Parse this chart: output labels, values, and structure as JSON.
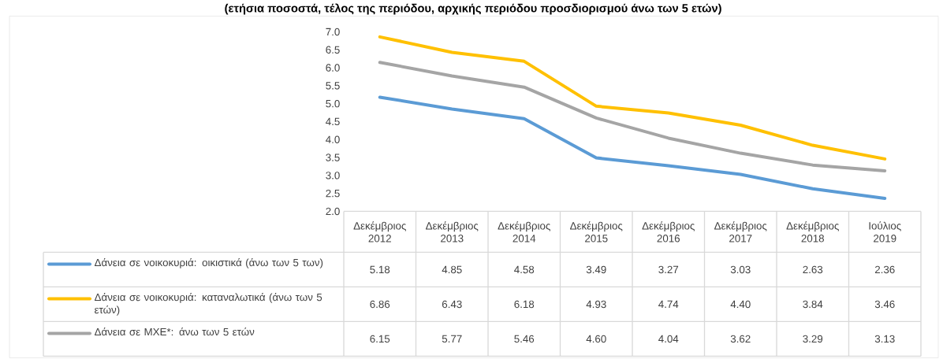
{
  "chart_data": {
    "type": "line",
    "title": "(ετήσια ποσοστά, τέλος της περιόδου, αρχικής περιόδου προσδιορισμού άνω των 5 ετών)",
    "categories": [
      "Δεκέμβριος 2012",
      "Δεκέμβριος 2013",
      "Δεκέμβριος 2014",
      "Δεκέμβριος 2015",
      "Δεκέμβριος 2016",
      "Δεκέμβριος 2017",
      "Δεκέμβριος 2018",
      "Ιούλιος 2019"
    ],
    "series": [
      {
        "name": "Δάνεια σε νοικοκυριά: οικιστικά (άνω των 5 των)",
        "color": "#5b9bd5",
        "values": [
          5.18,
          4.85,
          4.58,
          3.49,
          3.27,
          3.03,
          2.63,
          2.36
        ],
        "value_labels": [
          "5.18",
          "4.85",
          "4.58",
          "3.49",
          "3.27",
          "3.03",
          "2.63",
          "2.36"
        ]
      },
      {
        "name": "Δάνεια σε νοικοκυριά: καταναλωτικά (άνω των 5 ετών)",
        "color": "#ffc000",
        "values": [
          6.86,
          6.43,
          6.18,
          4.93,
          4.74,
          4.4,
          3.84,
          3.46
        ],
        "value_labels": [
          "6.86",
          "6.43",
          "6.18",
          "4.93",
          "4.74",
          "4.40",
          "3.84",
          "3.46"
        ]
      },
      {
        "name": "Δάνεια σε ΜΧΕ*: άνω των 5 ετών",
        "color": "#a5a5a5",
        "values": [
          6.15,
          5.77,
          5.46,
          4.6,
          4.04,
          3.62,
          3.29,
          3.13
        ],
        "value_labels": [
          "6.15",
          "5.77",
          "5.46",
          "4.60",
          "4.04",
          "3.62",
          "3.29",
          "3.13"
        ]
      }
    ],
    "ylim": [
      2,
      7
    ],
    "yticks": [
      {
        "value": 2,
        "label": "2.0"
      },
      {
        "value": 2.5,
        "label": "2.5"
      },
      {
        "value": 3,
        "label": "3.0"
      },
      {
        "value": 3.5,
        "label": "3.5"
      },
      {
        "value": 4,
        "label": "4.0"
      },
      {
        "value": 4.5,
        "label": "4.5"
      },
      {
        "value": 5,
        "label": "5.0"
      },
      {
        "value": 5.5,
        "label": "5.5"
      },
      {
        "value": 6,
        "label": "6.0"
      },
      {
        "value": 6.5,
        "label": "6.5"
      },
      {
        "value": 7,
        "label": "7.0"
      }
    ],
    "legend": "bottom"
  }
}
